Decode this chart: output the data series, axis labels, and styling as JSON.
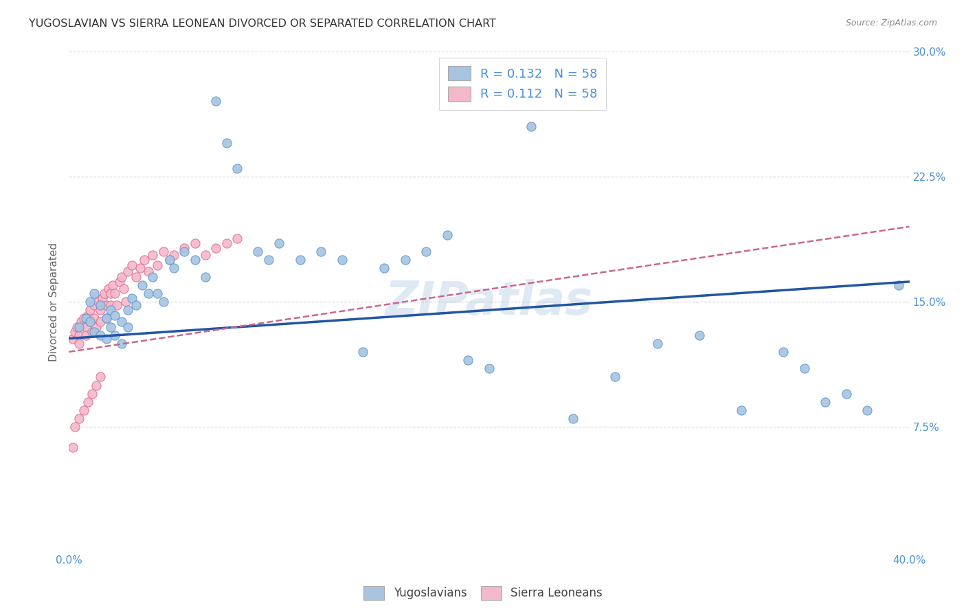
{
  "title": "YUGOSLAVIAN VS SIERRA LEONEAN DIVORCED OR SEPARATED CORRELATION CHART",
  "source": "Source: ZipAtlas.com",
  "ylabel": "Divorced or Separated",
  "xlim": [
    0.0,
    0.4
  ],
  "ylim": [
    0.0,
    0.3
  ],
  "watermark": "ZIPatlas",
  "color_yugo_fill": "#a8c4e0",
  "color_yugo_edge": "#5b9bd5",
  "color_sierra_fill": "#f4b8cb",
  "color_sierra_edge": "#e07090",
  "color_yugo_line": "#2255a4",
  "color_sierra_line": "#cc6688",
  "background": "#ffffff",
  "grid_color": "#cccccc",
  "title_color": "#333333",
  "tick_color": "#4a90d9",
  "legend_text_color": "#4a90d9",
  "yugo_x": [
    0.005,
    0.008,
    0.01,
    0.012,
    0.015,
    0.018,
    0.02,
    0.022,
    0.025,
    0.028,
    0.01,
    0.012,
    0.015,
    0.018,
    0.02,
    0.022,
    0.025,
    0.028,
    0.03,
    0.032,
    0.035,
    0.038,
    0.04,
    0.042,
    0.045,
    0.048,
    0.05,
    0.055,
    0.06,
    0.065,
    0.07,
    0.075,
    0.08,
    0.09,
    0.095,
    0.1,
    0.11,
    0.12,
    0.13,
    0.14,
    0.15,
    0.16,
    0.17,
    0.18,
    0.19,
    0.2,
    0.22,
    0.24,
    0.26,
    0.28,
    0.3,
    0.32,
    0.34,
    0.35,
    0.36,
    0.37,
    0.38,
    0.395
  ],
  "yugo_y": [
    0.135,
    0.14,
    0.138,
    0.132,
    0.13,
    0.128,
    0.145,
    0.142,
    0.138,
    0.135,
    0.15,
    0.155,
    0.148,
    0.14,
    0.135,
    0.13,
    0.125,
    0.145,
    0.152,
    0.148,
    0.16,
    0.155,
    0.165,
    0.155,
    0.15,
    0.175,
    0.17,
    0.18,
    0.175,
    0.165,
    0.27,
    0.245,
    0.23,
    0.18,
    0.175,
    0.185,
    0.175,
    0.18,
    0.175,
    0.12,
    0.17,
    0.175,
    0.18,
    0.19,
    0.115,
    0.11,
    0.255,
    0.08,
    0.105,
    0.125,
    0.13,
    0.085,
    0.12,
    0.11,
    0.09,
    0.095,
    0.085,
    0.16
  ],
  "sierra_x": [
    0.002,
    0.003,
    0.004,
    0.005,
    0.005,
    0.006,
    0.007,
    0.008,
    0.008,
    0.009,
    0.01,
    0.01,
    0.011,
    0.012,
    0.012,
    0.013,
    0.014,
    0.015,
    0.015,
    0.016,
    0.017,
    0.018,
    0.018,
    0.019,
    0.02,
    0.02,
    0.021,
    0.022,
    0.023,
    0.024,
    0.025,
    0.026,
    0.027,
    0.028,
    0.03,
    0.032,
    0.034,
    0.036,
    0.038,
    0.04,
    0.042,
    0.045,
    0.048,
    0.05,
    0.055,
    0.06,
    0.065,
    0.07,
    0.075,
    0.08,
    0.002,
    0.003,
    0.005,
    0.007,
    0.009,
    0.011,
    0.013,
    0.015
  ],
  "sierra_y": [
    0.128,
    0.132,
    0.135,
    0.13,
    0.125,
    0.138,
    0.14,
    0.135,
    0.13,
    0.142,
    0.145,
    0.138,
    0.132,
    0.148,
    0.14,
    0.135,
    0.15,
    0.145,
    0.138,
    0.152,
    0.155,
    0.148,
    0.14,
    0.158,
    0.155,
    0.148,
    0.16,
    0.155,
    0.148,
    0.162,
    0.165,
    0.158,
    0.15,
    0.168,
    0.172,
    0.165,
    0.17,
    0.175,
    0.168,
    0.178,
    0.172,
    0.18,
    0.175,
    0.178,
    0.182,
    0.185,
    0.178,
    0.182,
    0.185,
    0.188,
    0.063,
    0.075,
    0.08,
    0.085,
    0.09,
    0.095,
    0.1,
    0.105
  ],
  "yugo_line_x0": 0.0,
  "yugo_line_x1": 0.4,
  "yugo_line_y0": 0.128,
  "yugo_line_y1": 0.162,
  "sierra_line_x0": 0.0,
  "sierra_line_x1": 0.4,
  "sierra_line_y0": 0.12,
  "sierra_line_y1": 0.195
}
